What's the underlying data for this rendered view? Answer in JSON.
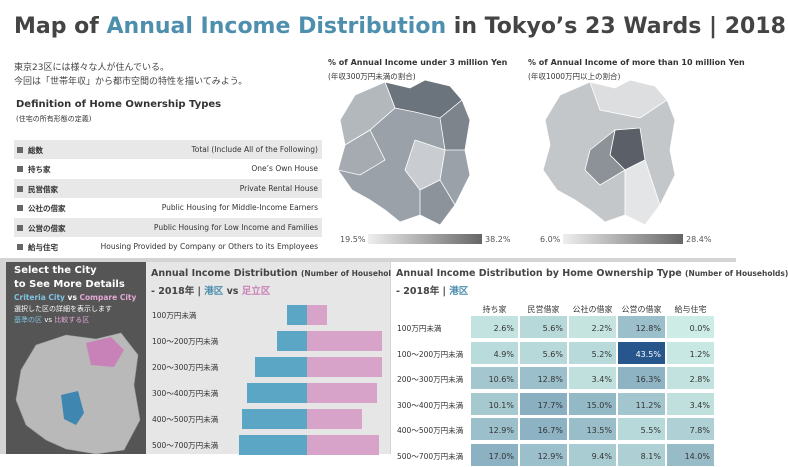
{
  "header": {
    "title_parts": [
      "Map of ",
      "Annual Income Distribution",
      " in Tokyo’s 23 Wards | 2018"
    ],
    "intro": [
      "東京23区には様々な人が住んでいる。",
      "今回は「世帯年収」から都市空間の特性を描いてみよう。"
    ]
  },
  "ownership": {
    "title": "Definition of Home Ownership Types",
    "subtitle": "(住宅の所有形態の定義)",
    "rows": [
      [
        "総数",
        "Total (Include All of the Following)"
      ],
      [
        "持ち家",
        "One’s Own House"
      ],
      [
        "民営借家",
        "Private Rental House"
      ],
      [
        "公社の借家",
        "Public Housing for Middle-Income Earners"
      ],
      [
        "公営の借家",
        "Public Housing for Low Income and Families"
      ],
      [
        "給与住宅",
        "Housing Provided by Company or Others to its Employees"
      ]
    ]
  },
  "map_low": {
    "title": "% of Annual Income under 3 million Yen",
    "subtitle": "(年収300万円未満の割合)",
    "legend_min": "19.5%",
    "legend_max": "38.2%"
  },
  "map_high": {
    "title": "% of Annual Income of more than 10 million Yen",
    "subtitle": "(年収1000万円以上の割合)",
    "legend_min": "6.0%",
    "legend_max": "28.4%"
  },
  "selector": {
    "title": [
      "Select the City",
      "to See More Details"
    ],
    "line1": [
      "Criteria City",
      " vs ",
      "Compare City"
    ],
    "line2": "選択した区の詳細を表示します",
    "line3": [
      "基準の区",
      " vs ",
      "比較する区"
    ]
  },
  "pyramid": {
    "chart_data": {
      "type": "bar",
      "title": "Annual Income Distribution",
      "title_note": "(Number of Households)",
      "subtitle_parts": [
        "- 2018年 | ",
        " vs "
      ],
      "categories": [
        "100万円未満",
        "100～200万円未満",
        "200～300万円未満",
        "300～400万円未満",
        "400～500万円未満",
        "500～700万円未満"
      ],
      "xlim": [
        0,
        80
      ],
      "series": [
        {
          "name": "港区",
          "color": "#5aa6c4",
          "values": [
            20,
            30,
            52,
            60,
            65,
            68
          ]
        },
        {
          "name": "足立区",
          "color": "#d7a3c8",
          "values": [
            20,
            75,
            75,
            70,
            55,
            72
          ]
        }
      ]
    }
  },
  "heatmap": {
    "title": "Annual Income Distribution by Home Ownership Type",
    "title_note": "(Number of Households)",
    "subtitle_parts": [
      "- 2018年 | ",
      "港区"
    ],
    "columns": [
      "持ち家",
      "民営借家",
      "公社の借家",
      "公営の借家",
      "給与住宅"
    ],
    "rows": [
      "100万円未満",
      "100～200万円未満",
      "200～300万円未満",
      "300～400万円未満",
      "400～500万円未満",
      "500～700万円未満"
    ],
    "values": [
      [
        2.6,
        5.6,
        2.2,
        12.8,
        0.0
      ],
      [
        4.9,
        5.6,
        5.2,
        43.5,
        1.2
      ],
      [
        10.6,
        12.8,
        3.4,
        16.3,
        2.8
      ],
      [
        10.1,
        17.7,
        15.0,
        11.2,
        3.4
      ],
      [
        12.9,
        16.7,
        13.5,
        5.5,
        7.8
      ],
      [
        17.0,
        12.9,
        9.4,
        8.1,
        14.0
      ]
    ],
    "value_labels": [
      [
        "2.6%",
        "5.6%",
        "2.2%",
        "12.8%",
        "0.0%"
      ],
      [
        "4.9%",
        "5.6%",
        "5.2%",
        "43.5%",
        "1.2%"
      ],
      [
        "10.6%",
        "12.8%",
        "3.4%",
        "16.3%",
        "2.8%"
      ],
      [
        "10.1%",
        "17.7%",
        "15.0%",
        "11.2%",
        "3.4%"
      ],
      [
        "12.9%",
        "16.7%",
        "13.5%",
        "5.5%",
        "7.8%"
      ],
      [
        "17.0%",
        "12.9%",
        "9.4%",
        "8.1%",
        "14.0%"
      ]
    ],
    "color_range": [
      0,
      43.5
    ]
  }
}
